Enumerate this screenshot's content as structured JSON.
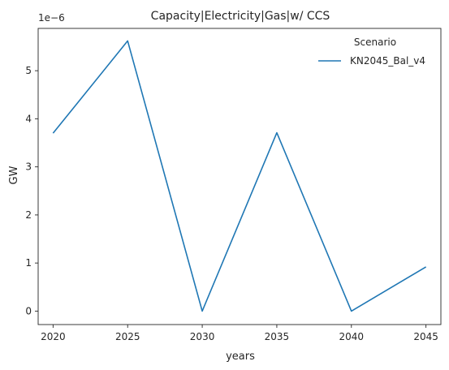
{
  "chart_data": {
    "type": "line",
    "title": "Capacity|Electricity|Gas|w/ CCS",
    "xlabel": "years",
    "ylabel": "GW",
    "y_offset_label": "1e−6",
    "x": [
      2020,
      2025,
      2030,
      2035,
      2040,
      2045
    ],
    "xlim": [
      2019.0,
      2046.0
    ],
    "ylim": [
      -0.28,
      5.88
    ],
    "xticks": [
      2020,
      2025,
      2030,
      2035,
      2040,
      2045
    ],
    "yticks": [
      0,
      1,
      2,
      3,
      4,
      5
    ],
    "grid": false,
    "legend": {
      "title": "Scenario",
      "placement": "top-right"
    },
    "series": [
      {
        "name": "KN2045_Bal_v4",
        "color": "#1f77b4",
        "values": [
          3.7,
          5.62,
          0.0,
          3.71,
          0.0,
          0.92
        ]
      }
    ]
  }
}
